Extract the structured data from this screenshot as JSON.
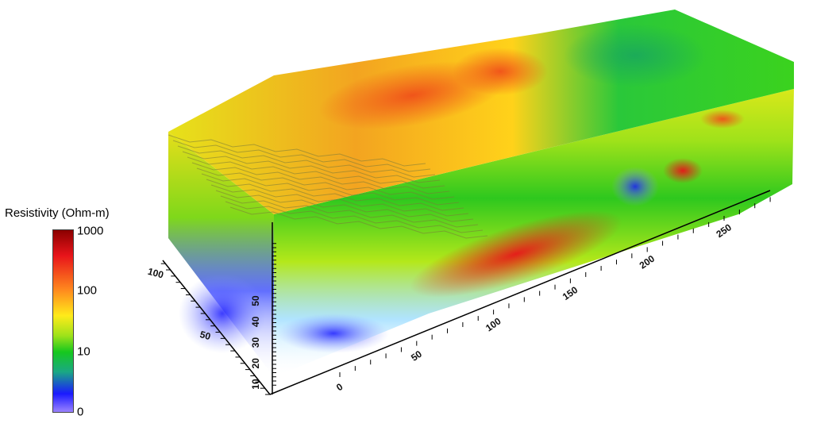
{
  "colorbar": {
    "title": "Resistivity (Ohm-m)",
    "ticks": [
      "1000",
      "100",
      "10",
      "0"
    ],
    "tick_values": [
      1000,
      100,
      10,
      0
    ],
    "colors": [
      "#8b0000",
      "#e8141a",
      "#ff8a1e",
      "#ffeb1a",
      "#9fe21a",
      "#16c81e",
      "#1aa884",
      "#1a1aff",
      "#9a82ff"
    ]
  },
  "chart_data": {
    "type": "heatmap",
    "title": "",
    "colorbar_title": "Resistivity (Ohm-m)",
    "colorbar_ticks": [
      1000,
      100,
      10,
      0
    ],
    "axes": {
      "x": {
        "ticks": [
          0,
          50,
          100,
          150,
          200,
          250
        ]
      },
      "y": {
        "ticks": [
          50,
          100
        ]
      },
      "z": {
        "ticks": [
          10,
          20,
          30,
          40,
          50
        ]
      }
    },
    "volume_features": [
      {
        "region": "top surface, middle-left",
        "resistivity": "100-1000 (orange/red)"
      },
      {
        "region": "top surface, right",
        "resistivity": "~10 (green/teal)"
      },
      {
        "region": "front face, lower middle",
        "resistivity": "100-1000 (red)"
      },
      {
        "region": "front face, bottom",
        "resistivity": "0-10 (blue)"
      }
    ]
  }
}
